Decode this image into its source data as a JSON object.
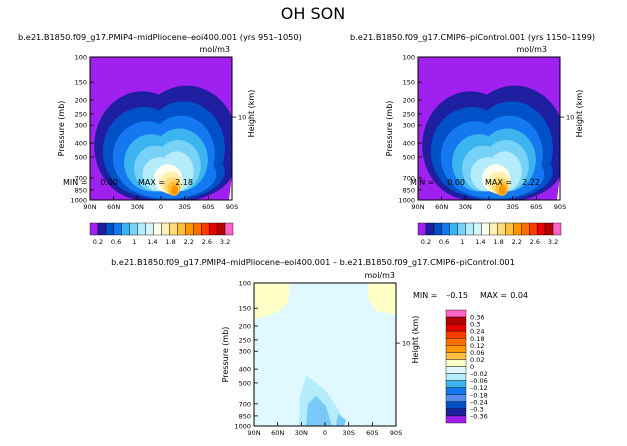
{
  "title": "OH SON",
  "palette": [
    "#a020f0",
    "#1e1ea0",
    "#0050c8",
    "#1478f0",
    "#3cb4f0",
    "#78d2f8",
    "#b4ecfc",
    "#d2f5fc",
    "#fffff0",
    "#fff0b4",
    "#ffdc78",
    "#ffbe3c",
    "#ff9600",
    "#ff6e00",
    "#ff3c00",
    "#e60000",
    "#b40000",
    "#ff64c8"
  ],
  "charts": [
    {
      "type": "contour",
      "title": "b.e21.B1850.f09_g17.PMIP4–midPliocene–eoi400.001  (yrs 951–1050)",
      "units": "mol/m3",
      "ylabel": "Pressure (mb)",
      "ylabel_right": "Height (km)",
      "ytick_labels": [
        "100",
        "150",
        "200",
        "250",
        "300",
        "400",
        "500",
        "700",
        "850",
        "1000"
      ],
      "ytick_values": [
        100,
        150,
        200,
        250,
        300,
        400,
        500,
        700,
        850,
        1000
      ],
      "right_tick_label": "10",
      "xtick_labels": [
        "90N",
        "60N",
        "30N",
        "0",
        "30S",
        "60S",
        "90S"
      ],
      "min_label": "MIN =",
      "min_value": "0.00",
      "max_label": "MAX =",
      "max_value": "2.18",
      "colorbar_labels": [
        "0.2",
        "0.6",
        "1",
        "1.4",
        "1.8",
        "2.2",
        "2.6",
        "3.2"
      ]
    },
    {
      "type": "contour",
      "title": "b.e21.B1850.f09_g17.CMIP6–piControl.001  (yrs 1150–1199)",
      "units": "mol/m3",
      "ylabel": "Pressure (mb)",
      "ylabel_right": "Height (km)",
      "ytick_labels": [
        "100",
        "150",
        "200",
        "250",
        "300",
        "400",
        "500",
        "700",
        "850",
        "1000"
      ],
      "ytick_values": [
        100,
        150,
        200,
        250,
        300,
        400,
        500,
        700,
        850,
        1000
      ],
      "right_tick_label": "10",
      "xtick_labels": [
        "90N",
        "60N",
        "30N",
        "0",
        "30S",
        "60S",
        "90S"
      ],
      "min_label": "MIN =",
      "min_value": "0.00",
      "max_label": "MAX =",
      "max_value": "2.22",
      "colorbar_labels": [
        "0.2",
        "0.6",
        "1",
        "1.4",
        "1.8",
        "2.2",
        "2.6",
        "3.2"
      ]
    },
    {
      "type": "contour",
      "title": "b.e21.B1850.f09_g17.PMIP4–midPliocene–eoi400.001  –  b.e21.B1850.f09_g17.CMIP6–piControl.001",
      "units": "mol/m3",
      "ylabel": "Pressure (mb)",
      "ylabel_right": "Height (km)",
      "ytick_labels": [
        "100",
        "150",
        "200",
        "250",
        "300",
        "400",
        "500",
        "700",
        "850",
        "1000"
      ],
      "ytick_values": [
        100,
        150,
        200,
        250,
        300,
        400,
        500,
        700,
        850,
        1000
      ],
      "right_tick_label": "10",
      "xtick_labels": [
        "90N",
        "60N",
        "30N",
        "0",
        "30S",
        "60S",
        "90S"
      ],
      "min_label": "MIN =",
      "min_value": "–0.15",
      "max_label": "MAX =",
      "max_value": "0.04",
      "colorbar_labels": [
        "0.36",
        "0.3",
        "0.24",
        "0.18",
        "0.12",
        "0.06",
        "0.02",
        "0",
        "–0.02",
        "–0.06",
        "–0.12",
        "–0.18",
        "–0.24",
        "–0.3",
        "–0.36"
      ],
      "colorbar_colors": [
        "#ff64c8",
        "#b40000",
        "#e60000",
        "#ff3c00",
        "#ff6e00",
        "#ff9600",
        "#ffbe3c",
        "#ffffc8",
        "#e0f8ff",
        "#b4ecfc",
        "#3cb4f0",
        "#1478f0",
        "#5a8cf0",
        "#0050c8",
        "#1e1ea0",
        "#a020f0"
      ]
    }
  ]
}
